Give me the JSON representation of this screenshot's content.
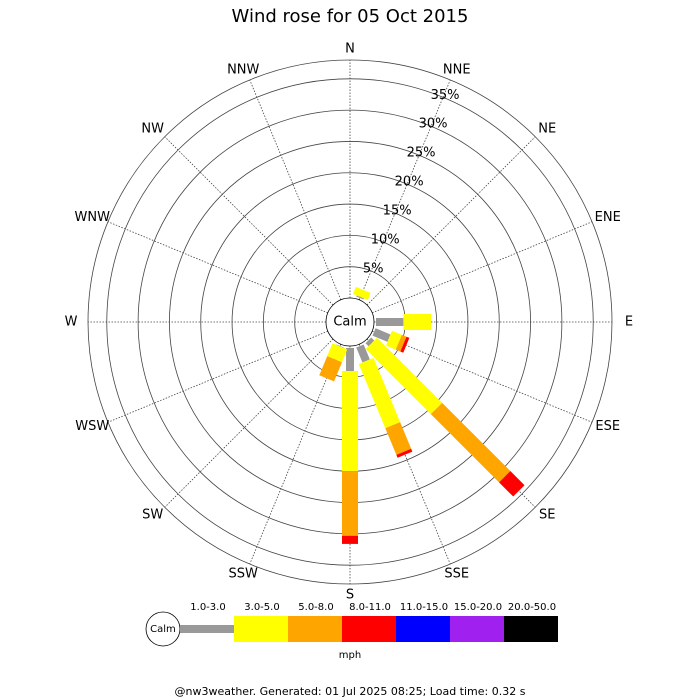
{
  "chart_data": {
    "type": "windrose",
    "title": "Wind rose for 05 Oct 2015",
    "categories": [
      "N",
      "NNE",
      "NE",
      "ENE",
      "E",
      "ESE",
      "SE",
      "SSE",
      "S",
      "SSW",
      "SW",
      "WSW",
      "W",
      "WNW",
      "NW",
      "NNW"
    ],
    "calm_label": "Calm",
    "unit": "mph",
    "ylim": [
      0,
      38
    ],
    "yticks": [
      {
        "value": 5,
        "label": "5%"
      },
      {
        "value": 10,
        "label": "10%"
      },
      {
        "value": 15,
        "label": "15%"
      },
      {
        "value": 20,
        "label": "20%"
      },
      {
        "value": 25,
        "label": "25%"
      },
      {
        "value": 30,
        "label": "30%"
      },
      {
        "value": 35,
        "label": "35%"
      }
    ],
    "series": [
      {
        "name": "1.0-3.0",
        "color": "#999999",
        "values": [
          0,
          0.5,
          0,
          0,
          4.7,
          2.9,
          1.0,
          2.9,
          4.0,
          0.4,
          0,
          0,
          0,
          0,
          0,
          0
        ]
      },
      {
        "name": "3.0-5.0",
        "color": "#ffff00",
        "values": [
          0,
          1.2,
          0,
          0,
          4.4,
          1.7,
          14.7,
          11.1,
          16.0,
          2.2,
          0,
          0,
          0,
          0,
          0,
          0
        ]
      },
      {
        "name": "5.0-8.0",
        "color": "#ffa500",
        "values": [
          0,
          0,
          0,
          0,
          0,
          0.8,
          15.4,
          4.6,
          10.3,
          3.3,
          0,
          0,
          0,
          0,
          0,
          0
        ]
      },
      {
        "name": "8.0-11.0",
        "color": "#ff0000",
        "values": [
          0,
          0,
          0,
          0,
          0,
          0.5,
          3.2,
          0.5,
          1.3,
          0,
          0,
          0,
          0,
          0,
          0,
          0
        ]
      },
      {
        "name": "11.0-15.0",
        "color": "#0000ff",
        "values": [
          0,
          0,
          0,
          0,
          0,
          0,
          0,
          0,
          0,
          0,
          0,
          0,
          0,
          0,
          0,
          0
        ]
      },
      {
        "name": "15.0-20.0",
        "color": "#a020f0",
        "values": [
          0,
          0,
          0,
          0,
          0,
          0,
          0,
          0,
          0,
          0,
          0,
          0,
          0,
          0,
          0,
          0
        ]
      },
      {
        "name": "20.0-50.0",
        "color": "#000000",
        "values": [
          0,
          0,
          0,
          0,
          0,
          0,
          0,
          0,
          0,
          0,
          0,
          0,
          0,
          0,
          0,
          0
        ]
      }
    ]
  },
  "footer": "@nw3weather. Generated: 01 Jul 2025 08:25; Load time: 0.32 s"
}
